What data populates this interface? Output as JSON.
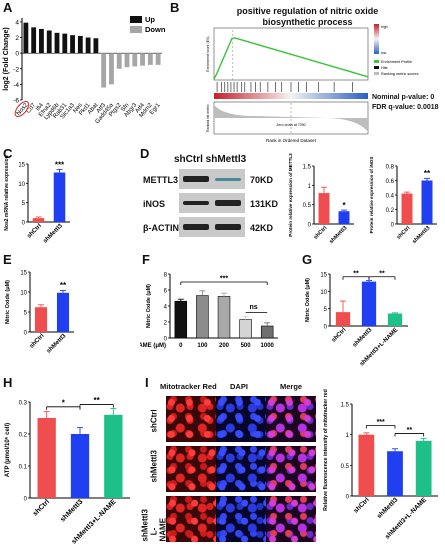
{
  "panels": {
    "A": {
      "label": "A",
      "chart_data": {
        "type": "bar",
        "ylabel": "log2 (Fold Change)",
        "yticks": [
          -6,
          -4,
          -2,
          0,
          2,
          4
        ],
        "ylim": [
          -6,
          4.5
        ],
        "legend": [
          {
            "name": "Up",
            "color": "#111111"
          },
          {
            "name": "Down",
            "color": "#a6a6a6"
          }
        ],
        "categories": [
          "Nos2",
          "Cd7",
          "Ifi4",
          "Efna2",
          "Lypd6b",
          "Rab31",
          "Slc1a3",
          "Nes",
          "Pkd1",
          "Abat",
          "Atf3",
          "Gadd45a",
          "Ptgs2",
          "Sfn",
          "Abgr3",
          "Atf4",
          "Mdm2",
          "Egr1"
        ],
        "highlight": "Nos2",
        "values": [
          3.9,
          3.3,
          3.1,
          2.9,
          2.6,
          2.5,
          2.3,
          2.2,
          2.0,
          1.9,
          -4.4,
          -4.0,
          -2.0,
          -1.8,
          -1.7,
          -1.6,
          -1.5,
          -1.5
        ]
      }
    },
    "B": {
      "label": "B",
      "title": "positive regulation of nitric oxide biosynthetic process",
      "yaxis_top": "Enrichment score (ES)",
      "yaxis_bottom": "Ranked list metric",
      "xlabel": "Rank in Ordered Dataset",
      "zero_cross": "Zero cross at 7090",
      "legend": [
        "Enrichment Profile",
        "Hits",
        "Ranking metric scores"
      ],
      "colorbar_top": "high",
      "colorbar_bottom": "low",
      "nominal_p": "Nominal p-value: 0",
      "fdr_q": "FDR q-value: 0.0018"
    },
    "C": {
      "label": "C",
      "chart_data": {
        "type": "bar",
        "ylabel": "Nos2 mRNA relative expression",
        "categories": [
          "shCtrl",
          "shMettl3"
        ],
        "values": [
          1.0,
          12.8
        ],
        "ylim": [
          0,
          15
        ],
        "yticks": [
          0,
          5,
          10,
          15
        ],
        "significance": "***"
      }
    },
    "D": {
      "label": "D",
      "header": "shCtrl shMettl3",
      "proteins": [
        {
          "name": "METTL3",
          "kd": "70KD"
        },
        {
          "name": "iNOS",
          "kd": "131KD"
        },
        {
          "name": "β-ACTIN",
          "kd": "42KD"
        }
      ],
      "chart_mettl3": {
        "type": "bar",
        "ylabel": "Protein relative expression of METTL3",
        "categories": [
          "shCtrl",
          "shMettl3"
        ],
        "values": [
          0.8,
          0.33
        ],
        "ylim": [
          0,
          1.5
        ],
        "yticks": [
          0.0,
          0.5,
          1.0,
          1.5
        ],
        "significance": "*"
      },
      "chart_inos": {
        "type": "bar",
        "ylabel": "Protein relative expression of iNOS",
        "categories": [
          "shCtrl",
          "shMettl3"
        ],
        "values": [
          0.42,
          0.6
        ],
        "ylim": [
          0,
          0.8
        ],
        "yticks": [
          0.0,
          0.2,
          0.4,
          0.6,
          0.8
        ],
        "significance": "**"
      }
    },
    "E": {
      "label": "E",
      "chart_data": {
        "type": "bar",
        "ylabel": "Nitric Oxide (μM)",
        "categories": [
          "shCtrl",
          "shMettl3"
        ],
        "values": [
          6.2,
          9.8
        ],
        "ylim": [
          0,
          15
        ],
        "yticks": [
          0,
          5,
          10,
          15
        ],
        "significance": "**"
      }
    },
    "F": {
      "label": "F",
      "chart_data": {
        "type": "bar",
        "ylabel": "Nitric Oxide (μM)",
        "xlabel": "L-NAME (μM)",
        "categories": [
          "0",
          "100",
          "200",
          "500",
          "1000"
        ],
        "values": [
          4.6,
          5.3,
          5.2,
          2.3,
          1.5
        ],
        "ylim": [
          0,
          8
        ],
        "yticks": [
          0,
          2,
          4,
          6,
          8
        ],
        "significance": [
          "***",
          "ns"
        ]
      }
    },
    "G": {
      "label": "G",
      "chart_data": {
        "type": "bar",
        "ylabel": "Nitric Oxide (μM)",
        "categories": [
          "shCtrl",
          "shMettl3",
          "shMettl3+L-NAME"
        ],
        "values": [
          4.0,
          12.8,
          3.6
        ],
        "ylim": [
          0,
          15
        ],
        "yticks": [
          0,
          5,
          10,
          15
        ],
        "significance": [
          "**",
          "**"
        ]
      }
    },
    "H": {
      "label": "H",
      "chart_data": {
        "type": "bar",
        "ylabel": "ATP (μmol/10⁶ cell)",
        "categories": [
          "shCtrl",
          "shMettl3",
          "shMettl3+L-NAME"
        ],
        "values": [
          0.25,
          0.2,
          0.26
        ],
        "ylim": [
          0,
          0.3
        ],
        "yticks": [
          0.0,
          0.1,
          0.2,
          0.3
        ],
        "significance": [
          "*",
          "**"
        ]
      }
    },
    "I": {
      "label": "I",
      "columns": [
        "Mitotracker Red",
        "DAPI",
        "Merge"
      ],
      "rows": [
        "shCtrl",
        "shMettl3",
        "shMettl3 L-NAME"
      ],
      "chart_data": {
        "type": "bar",
        "ylabel": "Relative fluorescence intensity of mitotracker red",
        "categories": [
          "shCtrl",
          "shMettl3",
          "shMettl3+L-NAME"
        ],
        "values": [
          1.0,
          0.73,
          0.9
        ],
        "ylim": [
          0,
          1.5
        ],
        "yticks": [
          0.0,
          0.5,
          1.0,
          1.5
        ],
        "significance": [
          "***",
          "**"
        ]
      }
    }
  }
}
